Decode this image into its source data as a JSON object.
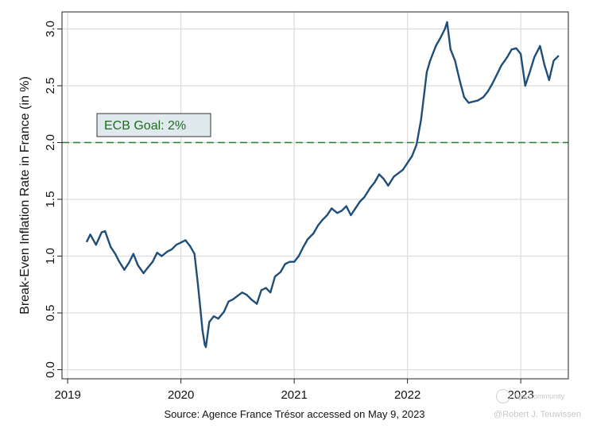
{
  "chart_data": {
    "type": "line",
    "ylabel": "Break-Even Inflation Rate in France (in %)",
    "xlabel": "",
    "x_ticks": [
      "2019",
      "2020",
      "2021",
      "2022",
      "2023"
    ],
    "y_ticks": [
      "0.0",
      "0.5",
      "1.0",
      "1.5",
      "2.0",
      "2.5",
      "3.0"
    ],
    "xlim": [
      2018.95,
      2023.42
    ],
    "ylim": [
      -0.08,
      3.15
    ],
    "grid": true,
    "line_color": "#1f4e79",
    "reference_line": {
      "label": "ECB Goal: 2%",
      "value": 2.0,
      "color": "#2e7d32",
      "style": "dashed"
    },
    "series": [
      {
        "x": [
          2019.17,
          2019.2,
          2019.25,
          2019.3,
          2019.33,
          2019.38,
          2019.42,
          2019.45,
          2019.5,
          2019.54,
          2019.58,
          2019.62,
          2019.67,
          2019.7,
          2019.75,
          2019.79,
          2019.83,
          2019.88,
          2019.92,
          2019.96,
          2020.0,
          2020.04,
          2020.08,
          2020.12,
          2020.15,
          2020.17,
          2020.19,
          2020.21,
          2020.22,
          2020.25,
          2020.29,
          2020.33,
          2020.38,
          2020.42,
          2020.46,
          2020.5,
          2020.54,
          2020.58,
          2020.62,
          2020.67,
          2020.71,
          2020.75,
          2020.79,
          2020.83,
          2020.88,
          2020.92,
          2020.96,
          2021.0,
          2021.04,
          2021.08,
          2021.12,
          2021.17,
          2021.21,
          2021.25,
          2021.29,
          2021.33,
          2021.38,
          2021.42,
          2021.46,
          2021.5,
          2021.54,
          2021.58,
          2021.62,
          2021.67,
          2021.71,
          2021.75,
          2021.79,
          2021.83,
          2021.88,
          2021.92,
          2021.96,
          2022.0,
          2022.04,
          2022.08,
          2022.12,
          2022.15,
          2022.17,
          2022.2,
          2022.25,
          2022.29,
          2022.33,
          2022.35,
          2022.38,
          2022.42,
          2022.46,
          2022.5,
          2022.54,
          2022.58,
          2022.62,
          2022.67,
          2022.71,
          2022.75,
          2022.79,
          2022.83,
          2022.88,
          2022.92,
          2022.96,
          2023.0,
          2023.04,
          2023.08,
          2023.12,
          2023.17,
          2023.21,
          2023.25,
          2023.29,
          2023.33
        ],
        "y": [
          1.13,
          1.19,
          1.1,
          1.21,
          1.22,
          1.08,
          1.02,
          0.96,
          0.88,
          0.94,
          1.02,
          0.92,
          0.85,
          0.89,
          0.95,
          1.03,
          1.0,
          1.04,
          1.06,
          1.1,
          1.12,
          1.14,
          1.09,
          1.02,
          0.75,
          0.55,
          0.35,
          0.22,
          0.2,
          0.42,
          0.47,
          0.45,
          0.51,
          0.6,
          0.62,
          0.65,
          0.68,
          0.66,
          0.62,
          0.58,
          0.7,
          0.72,
          0.68,
          0.82,
          0.86,
          0.93,
          0.95,
          0.95,
          1.0,
          1.08,
          1.15,
          1.2,
          1.27,
          1.32,
          1.36,
          1.42,
          1.38,
          1.4,
          1.44,
          1.36,
          1.42,
          1.48,
          1.52,
          1.6,
          1.65,
          1.72,
          1.68,
          1.62,
          1.7,
          1.73,
          1.76,
          1.82,
          1.88,
          1.98,
          2.2,
          2.45,
          2.62,
          2.72,
          2.85,
          2.92,
          3.0,
          3.06,
          2.82,
          2.72,
          2.55,
          2.4,
          2.35,
          2.36,
          2.37,
          2.4,
          2.45,
          2.52,
          2.6,
          2.68,
          2.75,
          2.82,
          2.83,
          2.78,
          2.5,
          2.62,
          2.75,
          2.85,
          2.68,
          2.55,
          2.72,
          2.76
        ]
      }
    ]
  },
  "footer": {
    "source": "Source: Agence France Trésor accessed on May 9, 2023",
    "credit": "@Robert J. Teuwissen",
    "watermark": "Tiga Community"
  }
}
